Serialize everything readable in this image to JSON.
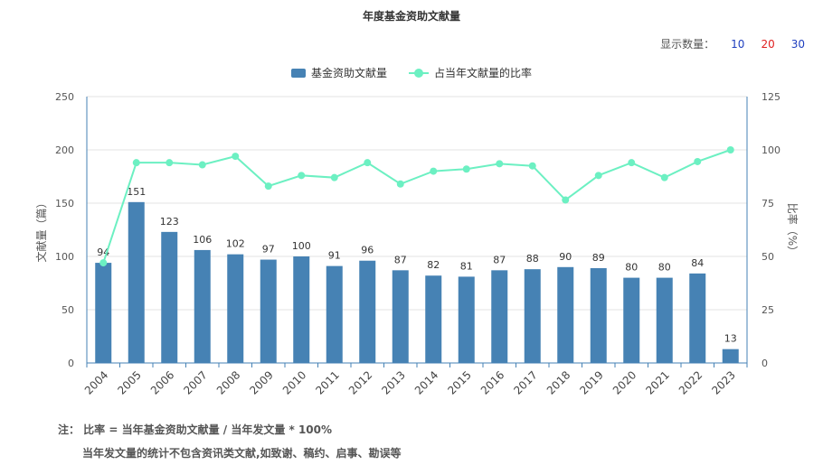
{
  "title": "年度基金资助文献量",
  "count_selector": {
    "label": "显示数量：",
    "options": [
      {
        "label": "10",
        "color": "#1f3fbf"
      },
      {
        "label": "20",
        "color": "#e02020"
      },
      {
        "label": "30",
        "color": "#1f3fbf"
      }
    ]
  },
  "colors": {
    "bar": "#4682b4",
    "line": "#6cf0c2",
    "axis_left": "#4682b4",
    "axis_right": "#4682b4",
    "grid": "#e3e3e3"
  },
  "chart_data": {
    "type": "bar",
    "title": "年度基金资助文献量",
    "categories": [
      "2004",
      "2005",
      "2006",
      "2007",
      "2008",
      "2009",
      "2010",
      "2011",
      "2012",
      "2013",
      "2014",
      "2015",
      "2016",
      "2017",
      "2018",
      "2019",
      "2020",
      "2021",
      "2022",
      "2023"
    ],
    "series": [
      {
        "name": "基金资助文献量",
        "type": "bar",
        "axis": "left",
        "values": [
          94,
          151,
          123,
          106,
          102,
          97,
          100,
          91,
          96,
          87,
          82,
          81,
          87,
          88,
          90,
          89,
          80,
          80,
          84,
          13
        ]
      },
      {
        "name": "占当年文献量的比率",
        "type": "line",
        "axis": "right",
        "values": [
          47,
          94,
          94,
          93,
          97,
          83,
          88,
          87,
          94,
          84,
          90,
          91,
          93.5,
          92.5,
          76.5,
          88,
          94,
          87,
          94.5,
          100
        ]
      }
    ],
    "ylabel": "文献量（篇）",
    "y2label": "比率（%）",
    "ylim": [
      0,
      250
    ],
    "yticks": [
      0,
      50,
      100,
      150,
      200,
      250
    ],
    "y2lim": [
      0,
      125
    ],
    "y2ticks": [
      0,
      25,
      50,
      75,
      100,
      125
    ],
    "grid": true,
    "legend": "top-center"
  },
  "note": {
    "line1": "注：  比率 = 当年基金资助文献量 / 当年发文量 * 100%",
    "line2": "当年发文量的统计不包含资讯类文献,如致谢、稿约、启事、勘误等"
  }
}
